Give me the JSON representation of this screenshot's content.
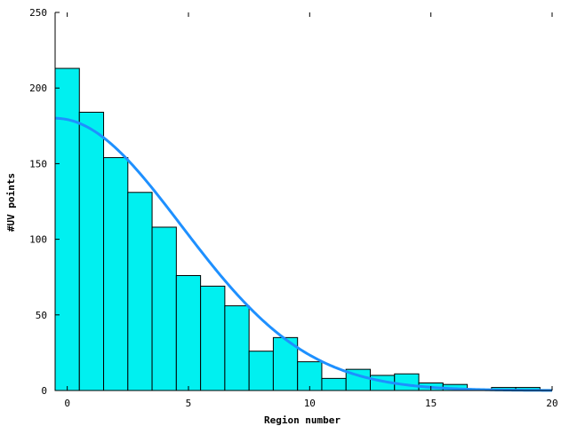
{
  "chart_data": {
    "type": "bar",
    "title": "",
    "xlabel": "Region number",
    "ylabel": "#UV points",
    "xlim": [
      -0.5,
      20
    ],
    "ylim": [
      0,
      250
    ],
    "x_ticks": [
      0,
      5,
      10,
      15,
      20
    ],
    "y_ticks": [
      0,
      50,
      100,
      150,
      200,
      250
    ],
    "grid": false,
    "legend": "none",
    "bar_color": "#00f0f0",
    "bar_edge_color": "#000000",
    "line_color": "#1e90ff",
    "bars": {
      "x": [
        0,
        1,
        2,
        3,
        4,
        5,
        6,
        7,
        8,
        9,
        10,
        11,
        12,
        13,
        14,
        15,
        16,
        17,
        18,
        19
      ],
      "values": [
        213,
        184,
        154,
        131,
        108,
        76,
        69,
        56,
        26,
        35,
        19,
        8,
        14,
        10,
        11,
        5,
        4,
        0,
        2,
        2
      ]
    },
    "curve": {
      "type": "gaussian",
      "amplitude": 180,
      "mean": -0.5,
      "sigma": 5.2
    }
  }
}
